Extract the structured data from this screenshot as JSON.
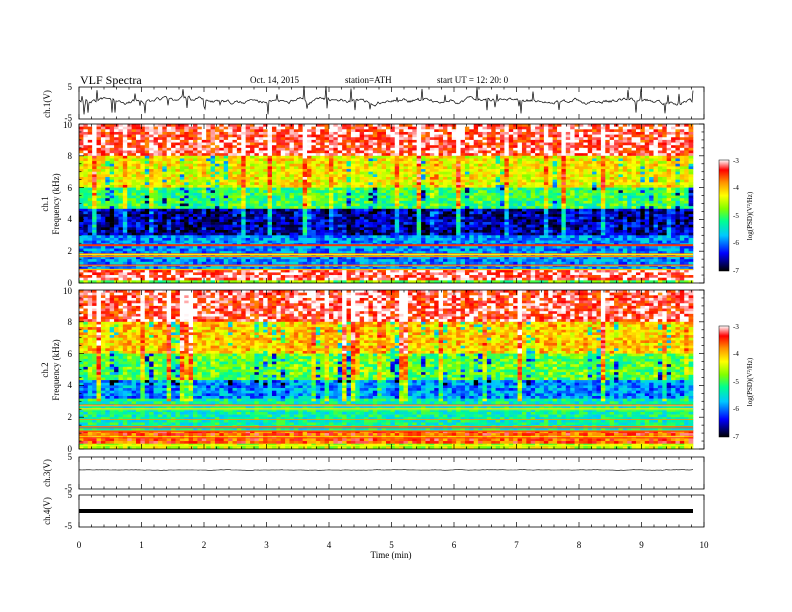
{
  "header": {
    "title": "VLF  Spectra",
    "date": "Oct. 14, 2015",
    "station": "station=ATH",
    "start": "start  UT =   12: 20: 0"
  },
  "chart_data": [
    {
      "type": "line",
      "panel": "ch1-waveform",
      "ylabel": "ch.1(V)",
      "ylim": [
        -5,
        5
      ],
      "yticks": [
        "5",
        "-5"
      ],
      "xlim": [
        0,
        10
      ],
      "trace_color": "#000000",
      "approx_baseline_V": -0.8
    },
    {
      "type": "heatmap",
      "panel": "ch1-spectrogram",
      "ylabel": "ch.1\nFrequency  (kHz)",
      "ylabel_line1": "ch.1",
      "ylabel_line2": "Frequency  (kHz)",
      "ylim": [
        0,
        10
      ],
      "yticks": [
        "0",
        "2",
        "4",
        "6",
        "8",
        "10"
      ],
      "xlim": [
        0,
        9.8
      ],
      "colorbar": {
        "label": "log(PSD)(V²/Hz)",
        "range": [
          -7,
          -3
        ],
        "ticks": [
          "-3",
          "-4",
          "-5",
          "-6",
          "-7"
        ]
      },
      "band_profile_log_psd": [
        {
          "freq_kHz": [
            0,
            0.2
          ],
          "log_psd": -4.8
        },
        {
          "freq_kHz": [
            0.2,
            0.8
          ],
          "log_psd": -3.2
        },
        {
          "freq_kHz": [
            0.8,
            3.0
          ],
          "log_psd": -5.9
        },
        {
          "freq_kHz": [
            3.0,
            4.6
          ],
          "log_psd": -6.6
        },
        {
          "freq_kHz": [
            4.6,
            6.0
          ],
          "log_psd": -5.1
        },
        {
          "freq_kHz": [
            6.0,
            8.0
          ],
          "log_psd": -4.3
        },
        {
          "freq_kHz": [
            8.0,
            10.0
          ],
          "log_psd": -3.3
        }
      ]
    },
    {
      "type": "heatmap",
      "panel": "ch2-spectrogram",
      "ylabel_line1": "ch.2",
      "ylabel_line2": "Frequency  (kHz)",
      "ylim": [
        0,
        10
      ],
      "yticks": [
        "0",
        "2",
        "4",
        "6",
        "8",
        "10"
      ],
      "xlim": [
        0,
        9.8
      ],
      "colorbar": {
        "label": "log(PSD)(V²/Hz)",
        "range": [
          -7,
          -3
        ],
        "ticks": [
          "-3",
          "-4",
          "-5",
          "-6",
          "-7"
        ]
      },
      "band_profile_log_psd": [
        {
          "freq_kHz": [
            0,
            0.3
          ],
          "log_psd": -4.5
        },
        {
          "freq_kHz": [
            0.3,
            1.2
          ],
          "log_psd": -3.6
        },
        {
          "freq_kHz": [
            1.2,
            3.2
          ],
          "log_psd": -5.3
        },
        {
          "freq_kHz": [
            3.2,
            4.4
          ],
          "log_psd": -5.9
        },
        {
          "freq_kHz": [
            4.4,
            6.0
          ],
          "log_psd": -4.9
        },
        {
          "freq_kHz": [
            6.0,
            8.0
          ],
          "log_psd": -4.1
        },
        {
          "freq_kHz": [
            8.0,
            10.0
          ],
          "log_psd": -3.3
        }
      ]
    },
    {
      "type": "line",
      "panel": "ch3-waveform",
      "ylabel": "ch.3(V)",
      "ylim": [
        -5,
        5
      ],
      "yticks": [
        "5",
        "-5"
      ],
      "approx_baseline_V": -0.5
    },
    {
      "type": "line",
      "panel": "ch4-waveform",
      "ylabel": "ch.4(V)",
      "ylim": [
        -5,
        5
      ],
      "yticks": [
        "5",
        "-5"
      ],
      "approx_baseline_V": -0.3
    }
  ],
  "xaxis": {
    "label": "Time  (min)",
    "ticks": [
      "0",
      "1",
      "2",
      "3",
      "4",
      "5",
      "6",
      "7",
      "8",
      "9",
      "10"
    ],
    "range": [
      0,
      10
    ]
  }
}
